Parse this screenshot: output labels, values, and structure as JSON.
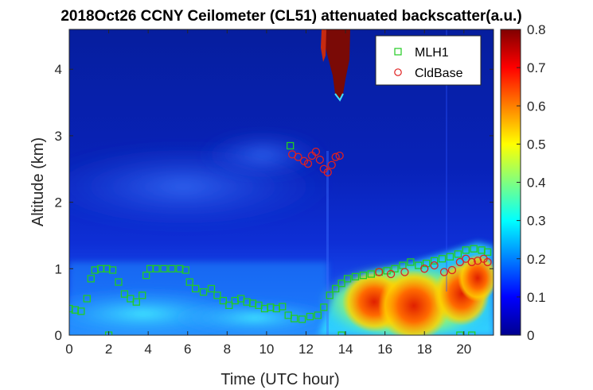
{
  "chart_data": {
    "type": "heatmap",
    "title": "2018Oct26 CCNY Ceilometer (CL51) attenuated backscatter(a.u.)",
    "xlabel": "Time (UTC hour)",
    "ylabel": "Altitude (km)",
    "xlim": [
      0,
      21.5
    ],
    "ylim": [
      0,
      4.6
    ],
    "xticks": [
      "0",
      "2",
      "4",
      "6",
      "8",
      "10",
      "12",
      "14",
      "16",
      "18",
      "20"
    ],
    "yticks": [
      "0",
      "1",
      "2",
      "3",
      "4"
    ],
    "colorbar": {
      "colormap": "jet",
      "range": [
        0,
        0.8
      ],
      "ticks": [
        "0",
        "0.1",
        "0.2",
        "0.3",
        "0.4",
        "0.5",
        "0.6",
        "0.7",
        "0.8"
      ]
    },
    "legend": {
      "position": "top-right",
      "entries": [
        "MLH1",
        "CldBase"
      ]
    },
    "colors": {
      "mlh1": "#22cc22",
      "cldbase": "#e02020"
    },
    "series": [
      {
        "name": "MLH1",
        "marker": "square",
        "points": [
          [
            0.0,
            0.4
          ],
          [
            0.3,
            0.38
          ],
          [
            0.6,
            0.36
          ],
          [
            0.9,
            0.55
          ],
          [
            1.1,
            0.85
          ],
          [
            1.3,
            0.98
          ],
          [
            1.6,
            1.0
          ],
          [
            1.9,
            1.0
          ],
          [
            2.2,
            0.98
          ],
          [
            2.5,
            0.8
          ],
          [
            2.8,
            0.62
          ],
          [
            3.1,
            0.55
          ],
          [
            3.4,
            0.5
          ],
          [
            3.7,
            0.6
          ],
          [
            3.9,
            0.9
          ],
          [
            4.1,
            1.0
          ],
          [
            4.4,
            1.0
          ],
          [
            4.8,
            1.0
          ],
          [
            5.2,
            1.0
          ],
          [
            5.6,
            1.0
          ],
          [
            5.9,
            0.98
          ],
          [
            6.1,
            0.8
          ],
          [
            6.4,
            0.7
          ],
          [
            6.8,
            0.65
          ],
          [
            7.2,
            0.7
          ],
          [
            7.5,
            0.6
          ],
          [
            7.8,
            0.52
          ],
          [
            8.1,
            0.45
          ],
          [
            8.4,
            0.52
          ],
          [
            8.7,
            0.55
          ],
          [
            9.0,
            0.5
          ],
          [
            9.3,
            0.48
          ],
          [
            9.6,
            0.45
          ],
          [
            9.9,
            0.4
          ],
          [
            10.2,
            0.42
          ],
          [
            10.5,
            0.4
          ],
          [
            10.8,
            0.43
          ],
          [
            11.1,
            0.3
          ],
          [
            11.4,
            0.25
          ],
          [
            11.8,
            0.24
          ],
          [
            12.2,
            0.28
          ],
          [
            12.6,
            0.3
          ],
          [
            12.9,
            0.42
          ],
          [
            13.2,
            0.6
          ],
          [
            13.5,
            0.7
          ],
          [
            13.8,
            0.78
          ],
          [
            14.1,
            0.85
          ],
          [
            14.5,
            0.88
          ],
          [
            14.9,
            0.9
          ],
          [
            15.3,
            0.92
          ],
          [
            15.7,
            0.95
          ],
          [
            16.1,
            0.97
          ],
          [
            16.5,
            1.0
          ],
          [
            16.9,
            1.05
          ],
          [
            17.3,
            1.1
          ],
          [
            17.7,
            1.05
          ],
          [
            18.1,
            1.08
          ],
          [
            18.5,
            1.12
          ],
          [
            18.9,
            1.15
          ],
          [
            19.3,
            1.18
          ],
          [
            19.7,
            1.22
          ],
          [
            20.1,
            1.28
          ],
          [
            20.5,
            1.3
          ],
          [
            20.9,
            1.28
          ],
          [
            21.2,
            1.25
          ],
          [
            2.0,
            0.0
          ],
          [
            13.8,
            0.0
          ],
          [
            19.8,
            0.0
          ],
          [
            20.4,
            0.0
          ],
          [
            11.2,
            2.85
          ]
        ]
      },
      {
        "name": "CldBase",
        "marker": "circle",
        "points": [
          [
            11.3,
            2.72
          ],
          [
            11.6,
            2.68
          ],
          [
            11.9,
            2.62
          ],
          [
            12.1,
            2.58
          ],
          [
            12.3,
            2.7
          ],
          [
            12.5,
            2.76
          ],
          [
            12.7,
            2.64
          ],
          [
            12.9,
            2.5
          ],
          [
            13.1,
            2.45
          ],
          [
            13.3,
            2.56
          ],
          [
            13.5,
            2.68
          ],
          [
            13.7,
            2.7
          ],
          [
            15.7,
            0.95
          ],
          [
            16.3,
            0.92
          ],
          [
            17.0,
            0.95
          ],
          [
            18.0,
            1.0
          ],
          [
            18.5,
            1.05
          ],
          [
            19.0,
            0.95
          ],
          [
            19.4,
            0.98
          ],
          [
            19.8,
            1.1
          ],
          [
            20.1,
            1.15
          ],
          [
            20.4,
            1.1
          ],
          [
            20.7,
            1.12
          ],
          [
            21.0,
            1.15
          ],
          [
            21.2,
            1.1
          ]
        ]
      }
    ]
  }
}
